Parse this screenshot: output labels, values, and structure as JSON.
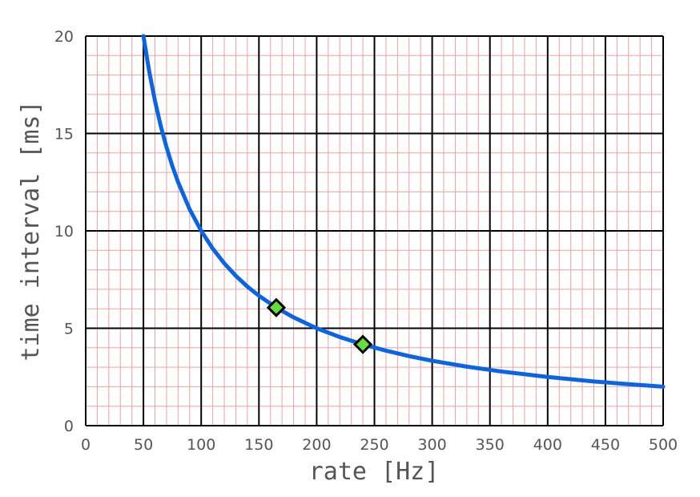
{
  "chart_data": {
    "type": "line",
    "title": "",
    "xlabel": "rate [Hz]",
    "ylabel": "time interval [ms]",
    "xlim": [
      0,
      500
    ],
    "ylim": [
      0,
      20
    ],
    "x_ticks": [
      0,
      50,
      100,
      150,
      200,
      250,
      300,
      350,
      400,
      450,
      500
    ],
    "y_ticks": [
      0,
      5,
      10,
      15,
      20
    ],
    "x_tick_labels": [
      "0",
      "50",
      "100",
      "150",
      "200",
      "250",
      "300",
      "350",
      "400",
      "450",
      "500"
    ],
    "y_tick_labels": [
      "0",
      "5",
      "10",
      "15",
      "20"
    ],
    "grid": true,
    "minor_grid": true,
    "series": [
      {
        "type": "line",
        "x": [
          50,
          55,
          60,
          65,
          70,
          75,
          80,
          90,
          100,
          110,
          120,
          130,
          140,
          150,
          165,
          180,
          200,
          220,
          240,
          260,
          280,
          300,
          330,
          360,
          400,
          440,
          470,
          500
        ],
        "y": [
          20,
          18.18,
          16.67,
          15.38,
          14.29,
          13.33,
          12.5,
          11.11,
          10,
          9.09,
          8.33,
          7.69,
          7.14,
          6.67,
          6.06,
          5.56,
          5,
          4.55,
          4.17,
          3.85,
          3.57,
          3.33,
          3.03,
          2.78,
          2.5,
          2.27,
          2.13,
          2
        ],
        "color": "#0a64e6"
      },
      {
        "type": "scatter",
        "marker": "diamond",
        "x": [
          165,
          240
        ],
        "y": [
          6.06,
          4.17
        ],
        "color": "#5fe03a",
        "edge_color": "#000000"
      }
    ],
    "colors": {
      "major_grid": "#000000",
      "minor_grid": "#f0a0a0",
      "text": "#555555"
    }
  }
}
